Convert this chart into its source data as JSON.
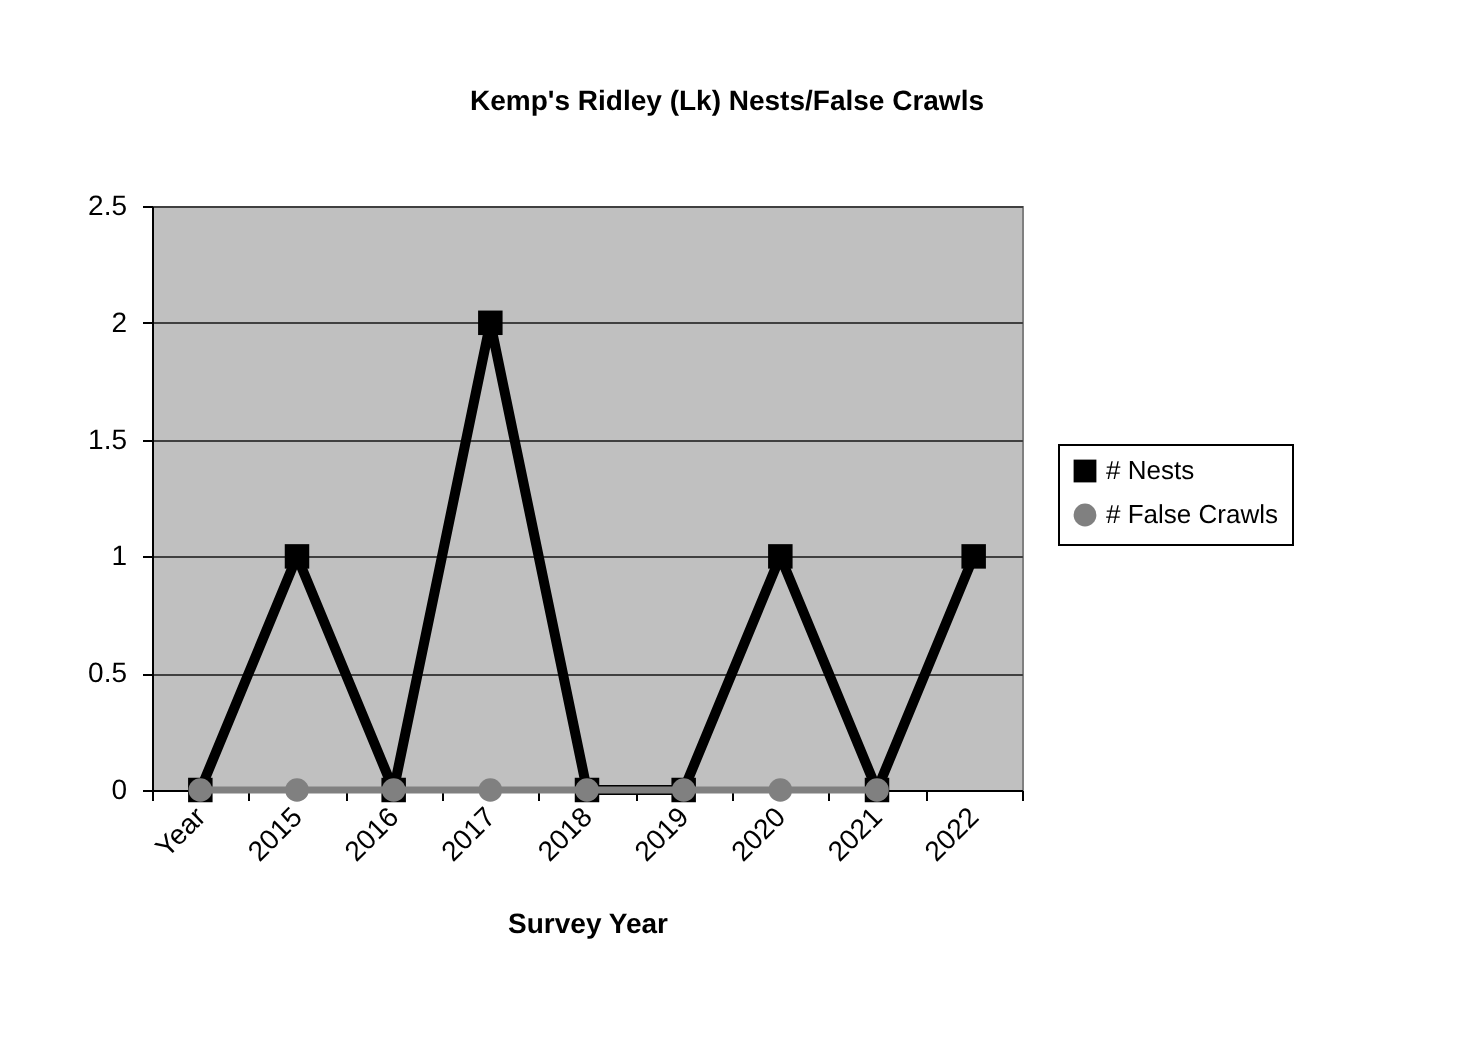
{
  "chart_data": {
    "type": "line",
    "title": "Kemp's Ridley (Lk) Nests/False Crawls",
    "xlabel": "Survey Year",
    "categories": [
      "Year",
      "2015",
      "2016",
      "2017",
      "2018",
      "2019",
      "2020",
      "2021",
      "2022"
    ],
    "series": [
      {
        "name": "# Nests",
        "color": "#000000",
        "marker": "square",
        "values": [
          0,
          1,
          0,
          2,
          0,
          0,
          1,
          0,
          1
        ]
      },
      {
        "name": "# False Crawls",
        "color": "#808080",
        "marker": "circle",
        "values": [
          0,
          0,
          0,
          0,
          0,
          0,
          0,
          0,
          null
        ]
      }
    ],
    "ylim": [
      0,
      2.5
    ],
    "yticks": [
      0,
      0.5,
      1,
      1.5,
      2,
      2.5
    ],
    "grid": "y",
    "legend": "right",
    "line_style": "solid"
  }
}
